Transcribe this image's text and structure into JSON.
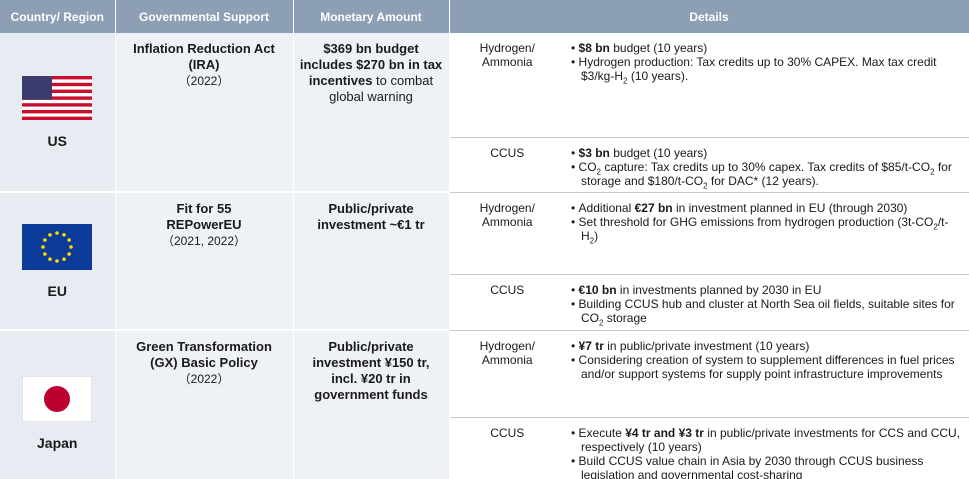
{
  "headers": [
    "Country/ Region",
    "Governmental Support",
    "Monetary Amount",
    "Details"
  ],
  "rows": [
    {
      "country": "US",
      "support": {
        "name": [
          "Inflation Reduction Act (IRA)"
        ],
        "year": "（2022）"
      },
      "monetary": [
        {
          "text": "$369 bn budget includes $270 bn in tax incentives",
          "style": "bold"
        },
        " to combat global warning"
      ],
      "sectors": [
        {
          "sector": "Hydrogen/ Ammonia",
          "bullets": [
            [
              {
                "text": "$8 bn",
                "style": "bold"
              },
              " budget (10 years)"
            ],
            [
              "Hydrogen production: Tax credits up to 30% CAPEX. Max tax credit $3/kg-H",
              {
                "text": "2",
                "style": "sub"
              },
              " (10 years)."
            ]
          ]
        },
        {
          "sector": "CCUS",
          "bullets": [
            [
              {
                "text": "$3 bn",
                "style": "bold"
              },
              " budget (10 years)"
            ],
            [
              "CO",
              {
                "text": "2",
                "style": "sub"
              },
              " capture: Tax credits up to 30% capex. Tax credits of $85/t-CO",
              {
                "text": "2",
                "style": "sub"
              },
              " for storage and $180/t-CO",
              {
                "text": "2",
                "style": "sub"
              },
              " for DAC* (12 years)."
            ]
          ]
        }
      ]
    },
    {
      "country": "EU",
      "support": {
        "name": [
          "Fit for 55",
          "REPowerEU"
        ],
        "year": "（2021, 2022）"
      },
      "monetary": [
        {
          "text": "Public/private investment ~€1 tr",
          "style": "bold"
        }
      ],
      "sectors": [
        {
          "sector": "Hydrogen/ Ammonia",
          "bullets": [
            [
              "Additional ",
              {
                "text": "€27 bn",
                "style": "bold"
              },
              " in investment planned in EU (through 2030)"
            ],
            [
              "Set threshold for GHG emissions from hydrogen production (3t-CO",
              {
                "text": "2",
                "style": "sub"
              },
              "/t-H",
              {
                "text": "2",
                "style": "sub"
              },
              ")"
            ]
          ]
        },
        {
          "sector": "CCUS",
          "bullets": [
            [
              {
                "text": "€10 bn",
                "style": "bold"
              },
              " in investments planned by 2030 in EU"
            ],
            [
              "Building CCUS hub and cluster at North Sea oil fields, suitable sites for CO",
              {
                "text": "2",
                "style": "sub"
              },
              " storage"
            ]
          ]
        }
      ]
    },
    {
      "country": "Japan",
      "support": {
        "name": [
          "Green Transformation (GX) Basic Policy"
        ],
        "year": "（2022）"
      },
      "monetary": [
        {
          "text": "Public/private investment ¥150 tr, incl. ¥20 tr in government funds",
          "style": "bold"
        }
      ],
      "sectors": [
        {
          "sector": "Hydrogen/ Ammonia",
          "bullets": [
            [
              {
                "text": "¥7 tr",
                "style": "bold"
              },
              " in public/private investment (10 years)"
            ],
            [
              "Considering creation of system to supplement differences in fuel prices and/or support systems for supply point infrastructure improvements"
            ]
          ]
        },
        {
          "sector": "CCUS",
          "bullets": [
            [
              "Execute ",
              {
                "text": "¥4 tr and ¥3 tr",
                "style": "bold"
              },
              " in public/private investments for CCS and CCU, respectively (10 years)"
            ],
            [
              "Build CCUS value chain in Asia by 2030 through CCUS business legislation and governmental cost-sharing"
            ]
          ]
        }
      ]
    }
  ]
}
